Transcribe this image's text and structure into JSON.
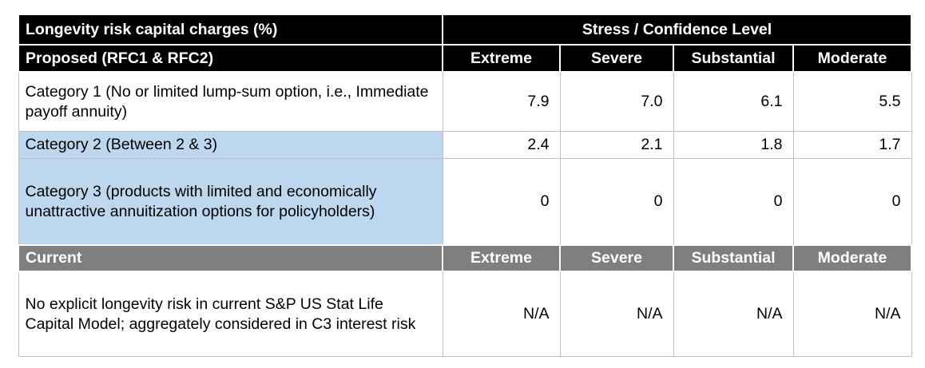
{
  "table": {
    "title": "Longevity risk capital charges (%)",
    "stress_header": "Stress / Confidence Level",
    "colors": {
      "header_bg": "#000000",
      "current_header_bg": "#7f7f7f",
      "highlight_bg": "#bdd7ee",
      "border": "#bfbfbf",
      "header_text": "#ffffff",
      "body_text": "#000000"
    },
    "proposed": {
      "label": "Proposed (RFC1 & RFC2)",
      "levels": [
        "Extreme",
        "Severe",
        "Substantial",
        "Moderate"
      ],
      "rows": [
        {
          "label": "Category 1 (No or limited lump-sum option, i.e., Immediate payoff annuity)",
          "values": [
            "7.9",
            "7.0",
            "6.1",
            "5.5"
          ],
          "highlight": false
        },
        {
          "label": "Category 2 (Between 2 & 3)",
          "values": [
            "2.4",
            "2.1",
            "1.8",
            "1.7"
          ],
          "highlight": true
        },
        {
          "label": "Category 3 (products with limited and economically unattractive annuitization options for policyholders)",
          "values": [
            "0",
            "0",
            "0",
            "0"
          ],
          "highlight": true
        }
      ]
    },
    "current": {
      "label": "Current",
      "levels": [
        "Extreme",
        "Severe",
        "Substantial",
        "Moderate"
      ],
      "rows": [
        {
          "label": "No explicit longevity risk in current S&P US Stat Life Capital Model; aggregately considered in C3 interest risk",
          "values": [
            "N/A",
            "N/A",
            "N/A",
            "N/A"
          ]
        }
      ]
    }
  }
}
